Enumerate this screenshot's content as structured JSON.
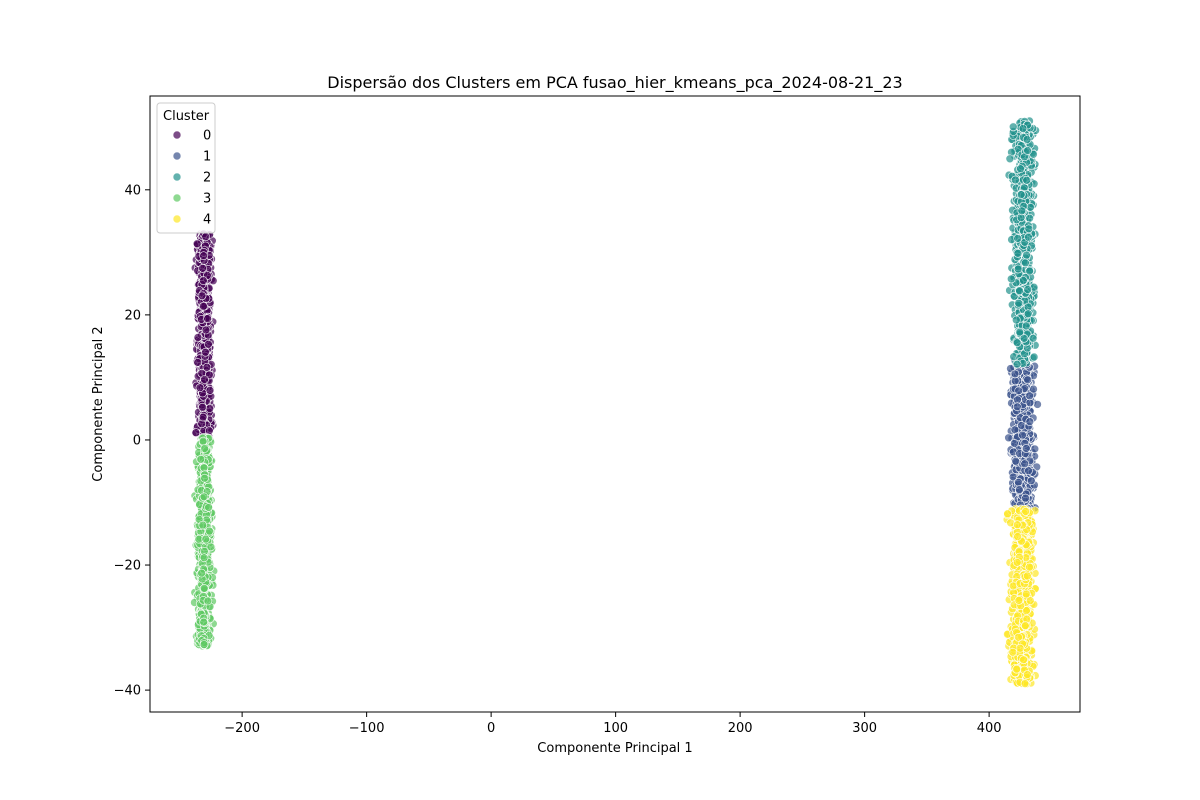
{
  "chart_data": {
    "type": "scatter",
    "title": "Dispersão dos Clusters em PCA fusao_hier_kmeans_pca_2024-08-21_23",
    "xlabel": "Componente Principal 1",
    "ylabel": "Componente Principal 2",
    "xlim": [
      -274,
      473
    ],
    "ylim": [
      -43.5,
      55
    ],
    "xticks": [
      -200,
      -100,
      0,
      100,
      200,
      300,
      400
    ],
    "xtick_labels": [
      "−200",
      "−100",
      "0",
      "100",
      "200",
      "300",
      "400"
    ],
    "yticks": [
      -40,
      -20,
      0,
      20,
      40
    ],
    "ytick_labels": [
      "−40",
      "−20",
      "0",
      "20",
      "40"
    ],
    "grid": false,
    "legend": {
      "title": "Cluster",
      "placement": "top-left",
      "entries": [
        "0",
        "1",
        "2",
        "3",
        "4"
      ]
    },
    "series": [
      {
        "name": "0",
        "color": "#440154",
        "groups": [
          {
            "x_range": [
              -240,
              -221
            ],
            "y_range": [
              0.5,
              33
            ]
          }
        ]
      },
      {
        "name": "1",
        "color": "#3b528b",
        "groups": [
          {
            "x_range": [
              413,
              441
            ],
            "y_range": [
              -11,
              13
            ]
          }
        ]
      },
      {
        "name": "2",
        "color": "#21918c",
        "groups": [
          {
            "x_range": [
              414,
              441
            ],
            "y_range": [
              12,
              51
            ]
          }
        ]
      },
      {
        "name": "3",
        "color": "#5ec962",
        "groups": [
          {
            "x_range": [
              -240,
              -221
            ],
            "y_range": [
              -33,
              0.5
            ]
          }
        ]
      },
      {
        "name": "4",
        "color": "#fde725",
        "groups": [
          {
            "x_range": [
              412,
              441
            ],
            "y_range": [
              -39,
              -11
            ]
          }
        ]
      }
    ]
  }
}
